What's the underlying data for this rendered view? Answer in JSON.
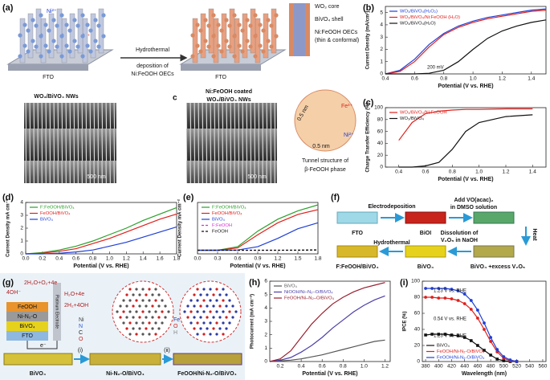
{
  "panel_a": {
    "label": "(a)",
    "ions": [
      "Ni²⁺",
      "Fe³⁺"
    ],
    "substrate": "FTO",
    "left_caption": "WO₃/BiVO₄ NWs",
    "arrow_text": [
      "Hydrothermal",
      "deposition of",
      "Ni:FeOOH OECs"
    ],
    "substrate_2": "FTO",
    "right_label": "c",
    "right_caption": [
      "Ni:FeOOH coated",
      "WO₃/BiVO₄ NWs"
    ],
    "inset": [
      "WO₃ core",
      "BiVO₄ shell",
      "Ni:FeOOH OECs",
      "(thin & conformal)"
    ],
    "tunnel_ions": [
      "Fe³⁺",
      "Ni²⁺"
    ],
    "scale": [
      "0.5 nm",
      "0.5 nm"
    ],
    "tunnel_caption": [
      "Tunnel structure of",
      "β-FeOOH phase"
    ],
    "sem_scale": [
      "500 nm",
      "500 nm"
    ]
  },
  "panel_f": {
    "label": "(f)",
    "steps": [
      "FTO",
      "BiOI",
      "BiVO₄ +excess V₂O₅",
      "BiVO₄",
      "F:FeOOH/BiVO₄"
    ],
    "arrows": [
      "Electrodeposition",
      "Add VO(acac)₂",
      "in DMSO solution",
      "Heat",
      "Dissolution of",
      "V₂O₅ in NaOH",
      "Hydrothermal"
    ]
  },
  "panel_g": {
    "label": "(g)",
    "reactions": [
      "2H₂O+O₂+4e",
      "4OH⁻",
      "H₂O+4e",
      "2H₂+4OH",
      "e⁻"
    ],
    "layers": [
      "FeOOH",
      "Ni-N₂-O",
      "BiVO₄",
      "FTO"
    ],
    "electrode": "Platinum Electrode",
    "atoms_left": [
      "Ni",
      "N",
      "C",
      "O"
    ],
    "atoms_right": [
      "Fe",
      "O",
      "H"
    ],
    "stages": [
      "BiVO₄",
      "Ni-N₂-O/BiVO₄",
      "FeOOH/Ni-N₂-O/BiVO₄"
    ],
    "steps": [
      "(i)",
      "(ii)"
    ]
  },
  "chart_data": [
    {
      "type": "line",
      "label": "(b)",
      "xlabel": "Potential (V vs. RHE)",
      "ylabel": "Current Density (mA/cm²)",
      "x": [
        0.4,
        0.5,
        0.6,
        0.7,
        0.8,
        0.9,
        1.0,
        1.1,
        1.2,
        1.3,
        1.4,
        1.5
      ],
      "series": [
        {
          "name": "WO₃/BiVO₄(H₂O₂)",
          "color": "#1f3fd6",
          "values": [
            0,
            0.3,
            1.2,
            2.4,
            3.3,
            3.9,
            4.3,
            4.6,
            4.8,
            5.0,
            5.2,
            5.3
          ]
        },
        {
          "name": "WO₃/BiVO₄/Ni:FeOOH (H₂O)",
          "color": "#e0201c",
          "values": [
            0,
            0.2,
            1.0,
            2.2,
            3.2,
            3.8,
            4.2,
            4.5,
            4.7,
            4.9,
            5.1,
            5.2
          ]
        },
        {
          "name": "WO₃/BiVO₄(H₂O)",
          "color": "#111111",
          "values": [
            0,
            0,
            0,
            0.05,
            0.3,
            1.0,
            2.0,
            2.9,
            3.5,
            3.9,
            4.2,
            4.4
          ]
        }
      ],
      "xlim": [
        0.4,
        1.5
      ],
      "ylim": [
        0,
        5.5
      ],
      "xticks": [
        0.4,
        0.6,
        0.8,
        {
          "value": 1.0,
          "label": "1.0"
        },
        1.2,
        1.4
      ],
      "yticks": [
        0,
        1,
        2,
        3,
        4,
        5
      ],
      "legend": "upper left",
      "annotations": [
        "200 mV"
      ]
    },
    {
      "type": "line",
      "label": "(c)",
      "xlabel": "Potential (V vs. RHE)",
      "ylabel": "Charge Transfer Efficiency (%)",
      "x": [
        0.4,
        0.5,
        0.6,
        0.7,
        0.8,
        0.9,
        1.0,
        1.2,
        1.4
      ],
      "series": [
        {
          "name": "WO₃/BiVO₄/Ni:FeOOH",
          "color": "#e0201c",
          "values": [
            45,
            75,
            90,
            94,
            96,
            97,
            97,
            98,
            98
          ]
        },
        {
          "name": "WO₃/BiVO₄",
          "color": "#111111",
          "values": [
            0,
            0,
            2,
            8,
            30,
            60,
            75,
            85,
            88
          ]
        }
      ],
      "xlim": [
        0.3,
        1.5
      ],
      "ylim": [
        0,
        100
      ],
      "xticks": [
        0.4,
        0.6,
        0.8,
        {
          "value": 1.0,
          "label": "1.0"
        },
        1.2,
        1.4
      ],
      "yticks": [
        0,
        20,
        40,
        60,
        80,
        100
      ],
      "legend": "upper left"
    },
    {
      "type": "line",
      "label": "(d)",
      "xlabel": "Potential  (V vs. RHE)",
      "ylabel": "Current Density mA cm⁻²",
      "x": [
        0,
        0.2,
        0.4,
        0.6,
        0.8,
        1.0,
        1.2,
        1.4,
        1.6,
        1.8
      ],
      "series": [
        {
          "name": "F:FeOOH/BiVO₄",
          "color": "#2aa02a",
          "values": [
            0,
            0.1,
            0.3,
            0.6,
            1.0,
            1.5,
            2.0,
            2.6,
            3.1,
            3.6
          ]
        },
        {
          "name": "FeOOH/BiVO₄",
          "color": "#e0201c",
          "values": [
            0,
            0.05,
            0.2,
            0.4,
            0.8,
            1.2,
            1.7,
            2.2,
            2.7,
            3.1
          ]
        },
        {
          "name": "BiVO₄",
          "color": "#1f3fd6",
          "values": [
            0,
            0,
            0.05,
            0.15,
            0.3,
            0.6,
            0.9,
            1.3,
            1.7,
            2.1
          ]
        }
      ],
      "xlim": [
        0,
        1.8
      ],
      "ylim": [
        0,
        4
      ],
      "xticks": [
        {
          "value": 0,
          "label": "0.0"
        },
        0.2,
        0.4,
        0.6,
        0.8,
        {
          "value": 1,
          "label": "1.0"
        },
        1.2,
        1.4,
        1.6,
        1.8
      ],
      "yticks": [
        0,
        1,
        2,
        3,
        4
      ],
      "legend": "upper left"
    },
    {
      "type": "line",
      "label": "(e)",
      "xlabel": "Potential  (V vs. RHE)",
      "ylabel": "Current Density mA cm⁻²",
      "x": [
        0,
        0.3,
        0.6,
        0.9,
        1.2,
        1.5,
        1.8
      ],
      "series": [
        {
          "name": "F:FeOOH/BiVO₄",
          "color": "#2aa02a",
          "values": [
            0,
            0,
            0.3,
            1.6,
            2.6,
            3.3,
            3.8
          ]
        },
        {
          "name": "FeOOH/BiVO₄",
          "color": "#e0201c",
          "values": [
            0,
            0,
            0.2,
            1.3,
            2.3,
            3.0,
            3.4
          ]
        },
        {
          "name": "BiVO₄",
          "color": "#1f3fd6",
          "values": [
            0,
            0,
            0.02,
            0.3,
            1.0,
            1.8,
            2.3
          ]
        },
        {
          "name": "F:FeOOH",
          "color": "#d62fd6",
          "dash": true,
          "values": [
            0,
            0,
            0,
            0,
            0,
            0.02,
            0.05
          ]
        },
        {
          "name": "FeOOH",
          "color": "#111111",
          "dash": true,
          "values": [
            0,
            0,
            0,
            0,
            0,
            0,
            0.02
          ]
        }
      ],
      "xlim": [
        0,
        1.8
      ],
      "ylim": [
        -0.3,
        4
      ],
      "xticks": [
        {
          "value": 0,
          "label": "0.0"
        },
        0.3,
        0.6,
        0.9,
        1.2,
        1.5,
        1.8
      ],
      "legend": "upper left"
    },
    {
      "type": "line",
      "label": "(h)",
      "xlabel": "Potential (V vs. RHE)",
      "ylabel": "Photocurrent (mA cm⁻²)",
      "x": [
        0.1,
        0.2,
        0.3,
        0.4,
        0.5,
        0.6,
        0.7,
        0.8,
        0.9,
        1.0,
        1.1,
        1.2
      ],
      "series": [
        {
          "name": "BiVO₄",
          "color": "#555555",
          "values": [
            0,
            0.05,
            0.1,
            0.2,
            0.35,
            0.5,
            0.7,
            0.9,
            1.1,
            1.3,
            1.5,
            1.6
          ]
        },
        {
          "name": "NiOOH/Ni–N₂–O/BiVO₄",
          "color": "#4b3fa8",
          "values": [
            0,
            0.1,
            0.3,
            0.7,
            1.2,
            1.8,
            2.5,
            3.1,
            3.7,
            4.2,
            4.6,
            4.9
          ]
        },
        {
          "name": "FeOOH/Ni–N₂–O/BiVO₄",
          "color": "#9a1f2e",
          "values": [
            0,
            0.2,
            0.8,
            1.8,
            2.8,
            3.6,
            4.3,
            4.8,
            5.2,
            5.5,
            5.7,
            5.9
          ]
        }
      ],
      "xlim": [
        0.1,
        1.25
      ],
      "ylim": [
        0,
        6
      ],
      "xticks": [
        0.2,
        0.4,
        0.6,
        0.8,
        {
          "value": 1,
          "label": "1.0"
        },
        1.2
      ],
      "yticks": [
        0,
        1,
        2,
        3,
        4,
        5,
        6
      ],
      "legend": "upper left"
    },
    {
      "type": "line",
      "label": "(i)",
      "xlabel": "Wavelength (nm)",
      "ylabel": "IPCE (%)",
      "x": [
        380,
        390,
        400,
        410,
        420,
        430,
        440,
        450,
        460,
        470,
        480,
        490,
        500,
        510,
        520
      ],
      "series": [
        {
          "name": "BiVO₄",
          "color": "#111111",
          "marker": "square",
          "values": [
            33,
            34,
            34,
            34,
            33,
            32,
            30,
            26,
            20,
            14,
            8,
            3,
            1,
            0,
            0
          ]
        },
        {
          "name": "FeOOH/Ni-N₂-O/BiVO₄",
          "color": "#e0201c",
          "marker": "circle",
          "values": [
            80,
            80,
            79,
            79,
            78,
            76,
            72,
            65,
            54,
            40,
            25,
            12,
            4,
            1,
            0
          ]
        },
        {
          "name": "FeOOH/Ni-N₂-O/BiVO₄",
          "color": "#1f3fd6",
          "marker": "circle",
          "values": [
            91,
            91,
            91,
            91,
            90,
            88,
            84,
            76,
            64,
            48,
            30,
            15,
            6,
            2,
            0
          ]
        }
      ],
      "xlim": [
        375,
        565
      ],
      "ylim": [
        0,
        100
      ],
      "xticks": [
        380,
        400,
        420,
        440,
        460,
        480,
        500,
        520,
        540,
        560
      ],
      "yticks": [
        0,
        20,
        40,
        60,
        80,
        100
      ],
      "legend": "lower left",
      "annotations": [
        "1.23 V vs. RHE",
        "0.54 V vs. RHE",
        "1.23 V vs. RHE"
      ]
    }
  ]
}
